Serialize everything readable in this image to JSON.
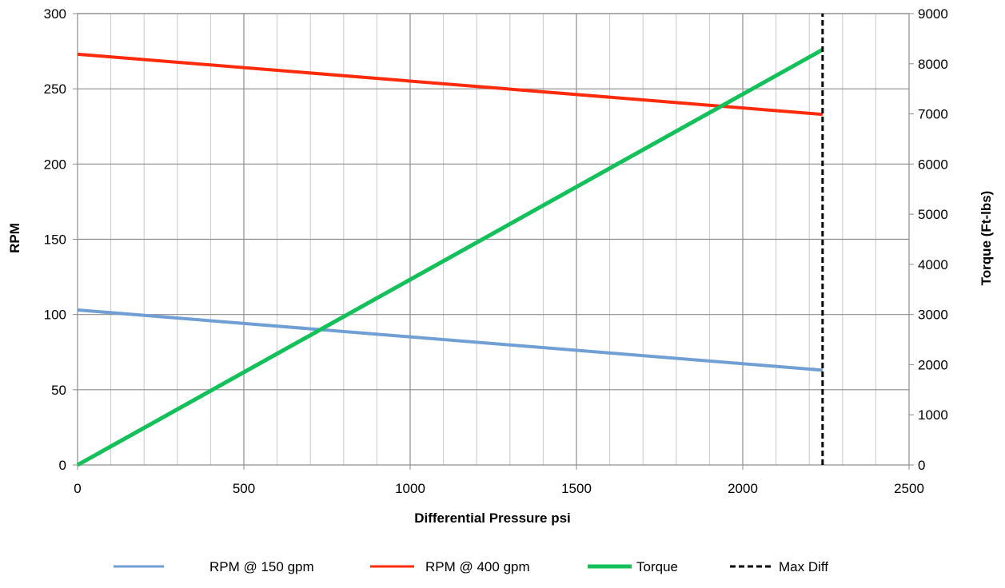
{
  "chart_data": {
    "type": "line",
    "title": "",
    "xlabel": "Differential Pressure psi",
    "ylabel": "RPM",
    "y2label": "Torque (Ft-lbs)",
    "xlim": [
      0,
      2500
    ],
    "ylim": [
      0,
      300
    ],
    "y2lim": [
      0,
      9000
    ],
    "x_ticks": [
      "0",
      "500",
      "1000",
      "1500",
      "2000",
      "2500"
    ],
    "y_ticks": [
      "0",
      "50",
      "100",
      "150",
      "200",
      "250",
      "300"
    ],
    "y2_ticks": [
      "0",
      "1000",
      "2000",
      "3000",
      "4000",
      "5000",
      "6000",
      "7000",
      "8000",
      "9000"
    ],
    "grid": true,
    "legend_position": "bottom",
    "series": [
      {
        "name": "RPM @ 150 gpm",
        "axis": "left",
        "color": "#6f9fd3",
        "x": [
          0,
          2240
        ],
        "values": [
          103,
          63
        ]
      },
      {
        "name": "RPM @ 400 gpm",
        "axis": "left",
        "color": "#ff2a0a",
        "x": [
          0,
          2240
        ],
        "values": [
          273,
          233
        ]
      },
      {
        "name": "Torque",
        "axis": "right",
        "color": "#13c05a",
        "x": [
          0,
          2240
        ],
        "values": [
          0,
          8280
        ]
      },
      {
        "name": "Max Diff",
        "axis": "right",
        "color": "#000000",
        "dashed": true,
        "x": [
          2240,
          2240
        ],
        "values": [
          0,
          9000
        ]
      }
    ]
  }
}
